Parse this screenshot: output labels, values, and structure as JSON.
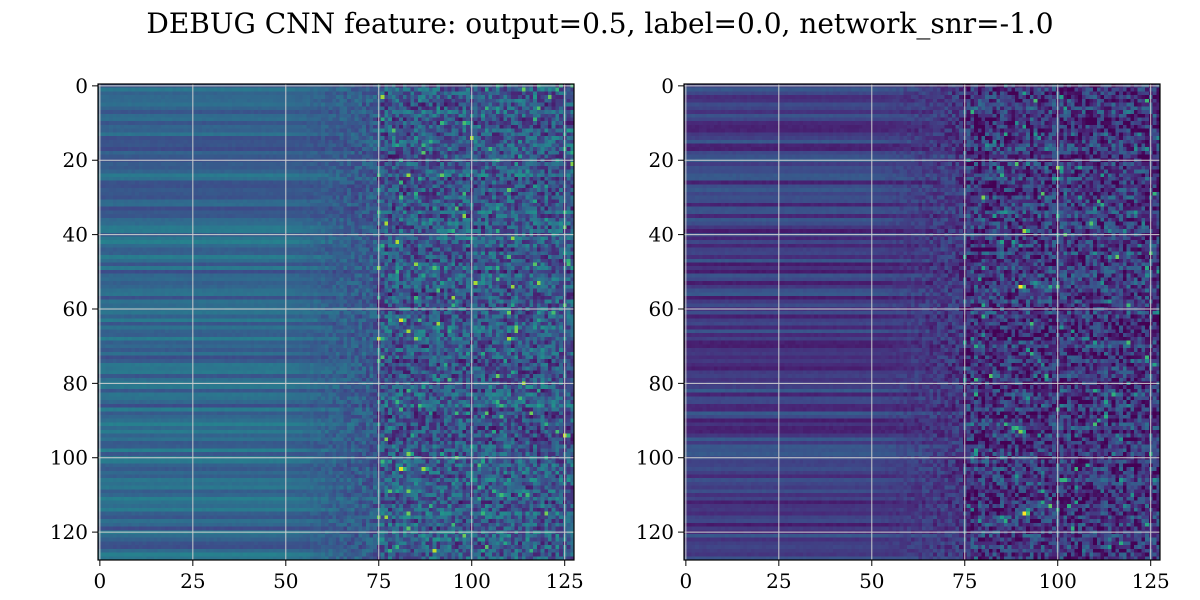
{
  "figure": {
    "title": "DEBUG CNN feature: output=0.5, label=0.0, network_snr=-1.0"
  },
  "colors": {
    "background": "#ffffff",
    "axes_frame": "#000000",
    "grid": "#cfcfcf",
    "colormap": "viridis",
    "colormap_stops": [
      "#440154",
      "#482878",
      "#3e4989",
      "#31688e",
      "#26828e",
      "#1f9e89",
      "#35b779",
      "#6ece58",
      "#b5de2b",
      "#fde725"
    ]
  },
  "chart_data": [
    {
      "type": "heatmap",
      "panel": "left",
      "title": "",
      "xlabel": "",
      "ylabel": "",
      "rows": 128,
      "cols": 128,
      "x_range": [
        0,
        127
      ],
      "y_range": [
        0,
        127
      ],
      "y_inverted": true,
      "grid": true,
      "x_ticks": [
        0,
        25,
        50,
        75,
        100,
        125
      ],
      "y_ticks": [
        0,
        20,
        40,
        60,
        80,
        100,
        120
      ],
      "colormap": "viridis",
      "pattern": {
        "smooth_cols": [
          0,
          50
        ],
        "transition_cols": [
          50,
          75
        ],
        "noisy_cols": [
          75,
          127
        ],
        "mean_left": 0.33,
        "mean_right": 0.28,
        "hotspots": [
          {
            "row": 63,
            "col": 81,
            "value": 0.95
          },
          {
            "row": 68,
            "col": 75,
            "value": 0.9
          },
          {
            "row": 68,
            "col": 85,
            "value": 0.8
          },
          {
            "row": 103,
            "col": 81,
            "value": 0.95
          },
          {
            "row": 103,
            "col": 87,
            "value": 0.85
          },
          {
            "row": 99,
            "col": 83,
            "value": 0.8
          }
        ]
      }
    },
    {
      "type": "heatmap",
      "panel": "right",
      "title": "",
      "xlabel": "",
      "ylabel": "",
      "rows": 128,
      "cols": 128,
      "x_range": [
        0,
        127
      ],
      "y_range": [
        0,
        127
      ],
      "y_inverted": true,
      "grid": true,
      "x_ticks": [
        0,
        25,
        50,
        75,
        100,
        125
      ],
      "y_ticks": [
        0,
        20,
        40,
        60,
        80,
        100,
        120
      ],
      "colormap": "viridis",
      "pattern": {
        "smooth_cols": [
          0,
          50
        ],
        "transition_cols": [
          50,
          75
        ],
        "noisy_cols": [
          75,
          127
        ],
        "mean_left": 0.18,
        "mean_right": 0.16,
        "hotspots": [
          {
            "row": 54,
            "col": 90,
            "value": 1.0
          },
          {
            "row": 115,
            "col": 91,
            "value": 1.0
          },
          {
            "row": 39,
            "col": 91,
            "value": 0.85
          },
          {
            "row": 22,
            "col": 100,
            "value": 0.85
          },
          {
            "row": 93,
            "col": 90,
            "value": 0.8
          }
        ]
      }
    }
  ]
}
